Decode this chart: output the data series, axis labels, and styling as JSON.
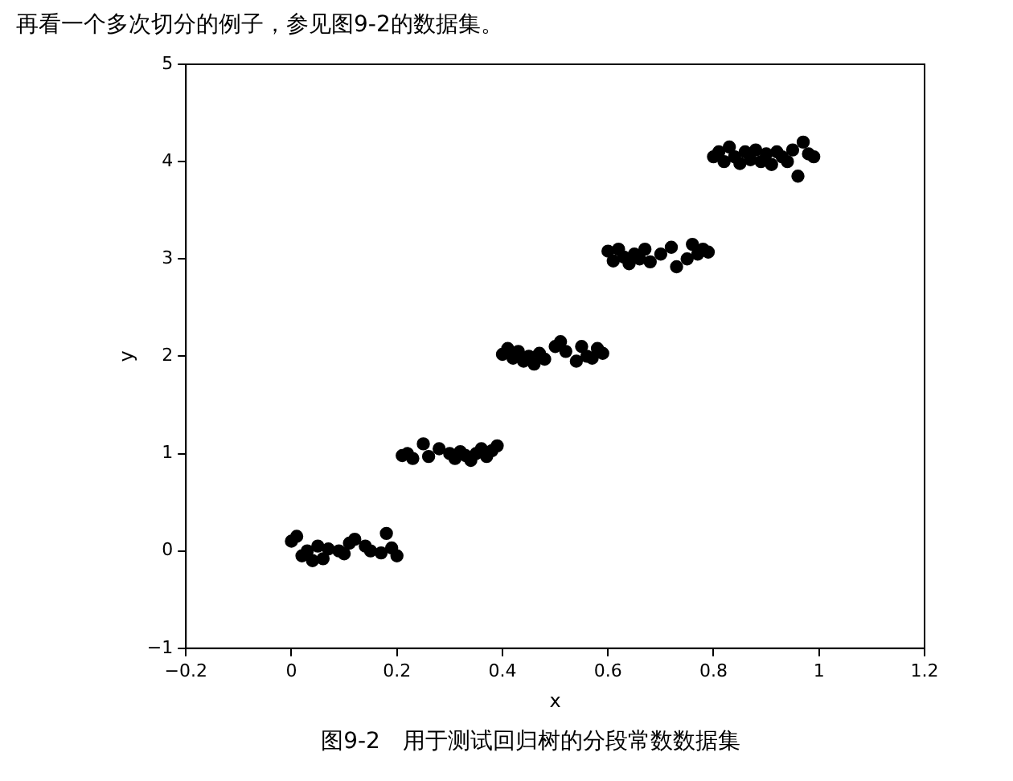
{
  "chart_data": {
    "type": "scatter",
    "xlabel": "x",
    "ylabel": "y",
    "marker": "circle",
    "grid": false,
    "legend": false,
    "annotations": [
      "再看一个多次切分的例子，参见图9-2的数据集。",
      "图9-2　用于测试回归树的分段常数数据集"
    ],
    "xlim": [
      -0.2,
      1.2
    ],
    "xticks": [
      {
        "value": -0.2,
        "label": "−0.2"
      },
      0.0,
      0.2,
      0.4,
      0.6,
      0.8,
      1.0,
      1.2
    ],
    "ylim": [
      -1,
      5
    ],
    "yticks": [
      {
        "value": -1,
        "label": "−1"
      },
      0,
      1,
      2,
      3,
      4,
      5
    ],
    "series": [
      {
        "color": "#000000",
        "x": [
          0.0,
          0.01,
          0.02,
          0.03,
          0.04,
          0.05,
          0.06,
          0.07,
          0.09,
          0.1,
          0.11,
          0.12,
          0.14,
          0.15,
          0.17,
          0.18,
          0.19,
          0.2,
          0.21,
          0.22,
          0.23,
          0.25,
          0.26,
          0.28,
          0.3,
          0.31,
          0.32,
          0.33,
          0.34,
          0.35,
          0.36,
          0.37,
          0.38,
          0.39,
          0.4,
          0.41,
          0.42,
          0.43,
          0.44,
          0.45,
          0.46,
          0.47,
          0.48,
          0.5,
          0.51,
          0.52,
          0.54,
          0.55,
          0.56,
          0.57,
          0.58,
          0.59,
          0.6,
          0.61,
          0.62,
          0.63,
          0.64,
          0.65,
          0.66,
          0.67,
          0.68,
          0.7,
          0.72,
          0.73,
          0.75,
          0.76,
          0.77,
          0.78,
          0.79,
          0.8,
          0.81,
          0.82,
          0.83,
          0.84,
          0.85,
          0.86,
          0.87,
          0.88,
          0.89,
          0.9,
          0.91,
          0.92,
          0.93,
          0.94,
          0.95,
          0.96,
          0.97,
          0.98,
          0.99
        ],
        "values": [
          0.1,
          0.15,
          -0.05,
          0.0,
          -0.1,
          0.05,
          -0.08,
          0.02,
          0.0,
          -0.03,
          0.08,
          0.12,
          0.05,
          0.0,
          -0.02,
          0.18,
          0.03,
          -0.05,
          0.98,
          1.0,
          0.95,
          1.1,
          0.97,
          1.05,
          1.0,
          0.95,
          1.02,
          0.98,
          0.93,
          1.0,
          1.05,
          0.97,
          1.03,
          1.08,
          2.02,
          2.08,
          1.98,
          2.05,
          1.95,
          2.0,
          1.92,
          2.03,
          1.97,
          2.1,
          2.15,
          2.05,
          1.95,
          2.1,
          2.0,
          1.98,
          2.08,
          2.03,
          3.08,
          2.98,
          3.1,
          3.02,
          2.95,
          3.05,
          3.0,
          3.1,
          2.97,
          3.05,
          3.12,
          2.92,
          3.0,
          3.15,
          3.05,
          3.1,
          3.07,
          4.05,
          4.1,
          4.0,
          4.15,
          4.05,
          3.98,
          4.1,
          4.02,
          4.12,
          4.0,
          4.08,
          3.97,
          4.1,
          4.05,
          4.0,
          4.12,
          3.85,
          4.2,
          4.08,
          4.05
        ]
      }
    ]
  }
}
